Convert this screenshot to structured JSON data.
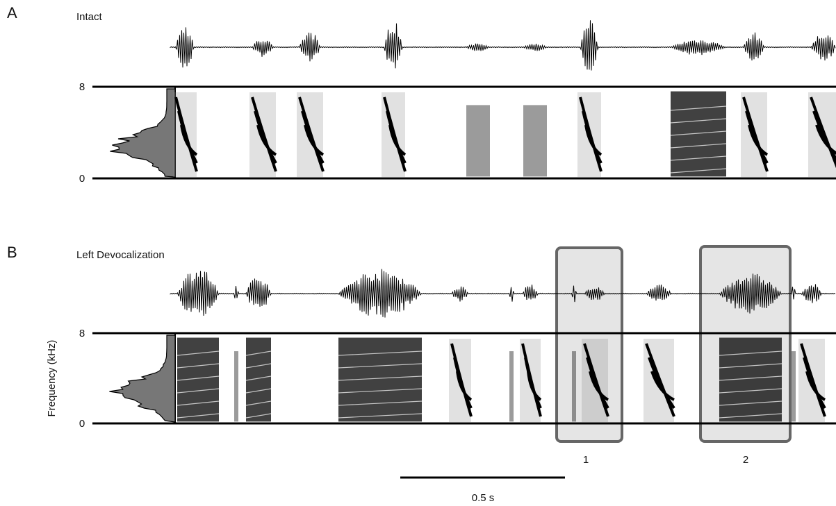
{
  "panels": [
    {
      "letter": "A",
      "title": "Intact",
      "freq_top": "8",
      "freq_bottom": "0"
    },
    {
      "letter": "B",
      "title": "Left Devocalization",
      "freq_top": "8",
      "freq_bottom": "0"
    }
  ],
  "y_axis_label": "Frequency (kHz)",
  "boxes": [
    "1",
    "2"
  ],
  "scale_bar": "0.5 s"
}
